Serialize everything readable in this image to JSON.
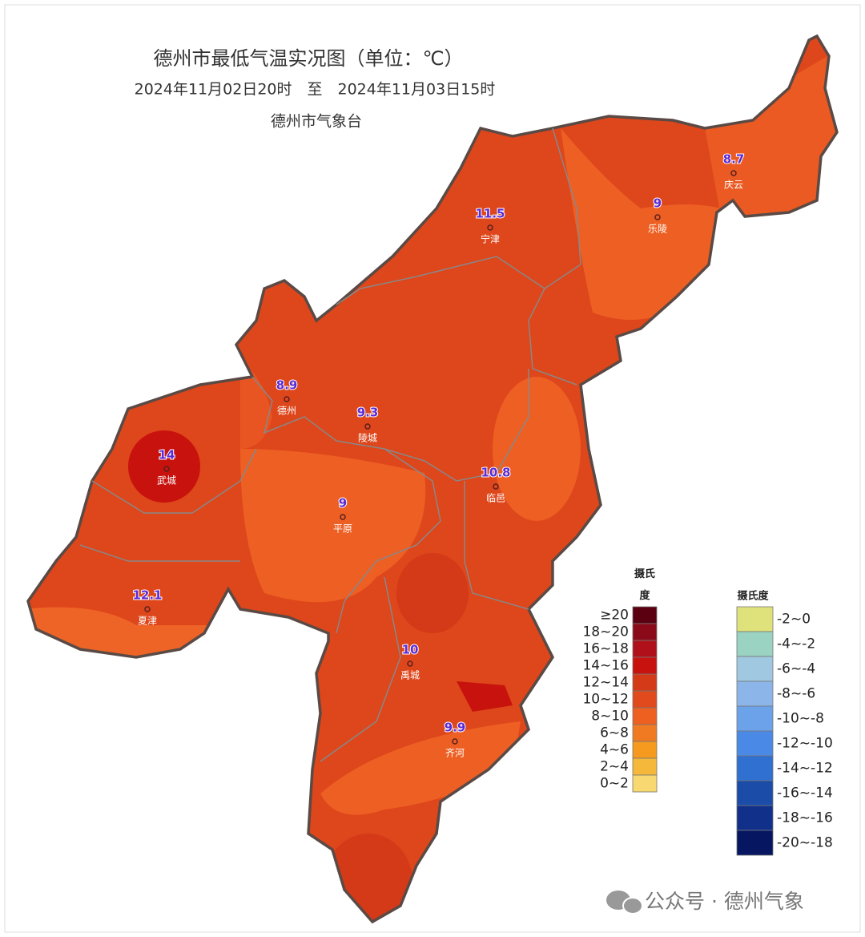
{
  "header": {
    "title": "德州市最低气温实况图（单位：℃）",
    "period": "2024年11月02日20时　至　2024年11月03日15时",
    "agency": "德州市气象台"
  },
  "stations": [
    {
      "name": "庆云",
      "value": 8.7
    },
    {
      "name": "乐陵",
      "value": 9
    },
    {
      "name": "宁津",
      "value": 11.5
    },
    {
      "name": "德州",
      "value": 8.9
    },
    {
      "name": "陵城",
      "value": 9.3
    },
    {
      "name": "武城",
      "value": 14
    },
    {
      "name": "平原",
      "value": 9
    },
    {
      "name": "临邑",
      "value": 10.8
    },
    {
      "name": "夏津",
      "value": 12.1
    },
    {
      "name": "禹城",
      "value": 10
    },
    {
      "name": "齐河",
      "value": 9.9
    }
  ],
  "legend_warm": {
    "title": "摄氏度",
    "items": [
      {
        "label": "≥20",
        "color": "#5a0010"
      },
      {
        "label": "18~20",
        "color": "#8b0a1a"
      },
      {
        "label": "16~18",
        "color": "#b0101a"
      },
      {
        "label": "14~16",
        "color": "#c8120e"
      },
      {
        "label": "12~14",
        "color": "#d43a18"
      },
      {
        "label": "10~12",
        "color": "#e04a1c"
      },
      {
        "label": "8~10",
        "color": "#ee6020"
      },
      {
        "label": "6~8",
        "color": "#f07a22"
      },
      {
        "label": "4~6",
        "color": "#f59a1e"
      },
      {
        "label": "2~4",
        "color": "#f5b83a"
      },
      {
        "label": "0~2",
        "color": "#f8d870"
      }
    ]
  },
  "legend_cold": {
    "title": "摄氏度",
    "items": [
      {
        "label": "-2~0",
        "color": "#dfe27a"
      },
      {
        "label": "-4~-2",
        "color": "#9ad3c2"
      },
      {
        "label": "-6~-4",
        "color": "#a0c8e0"
      },
      {
        "label": "-8~-6",
        "color": "#8cb6ea"
      },
      {
        "label": "-10~-8",
        "color": "#6ca2ea"
      },
      {
        "label": "-12~-10",
        "color": "#4a8ae6"
      },
      {
        "label": "-14~-12",
        "color": "#3070d0"
      },
      {
        "label": "-16~-14",
        "color": "#1a4ca8"
      },
      {
        "label": "-18~-16",
        "color": "#10308a"
      },
      {
        "label": "-20~-18",
        "color": "#061660"
      }
    ]
  },
  "watermark": "公众号 · 德州气象"
}
